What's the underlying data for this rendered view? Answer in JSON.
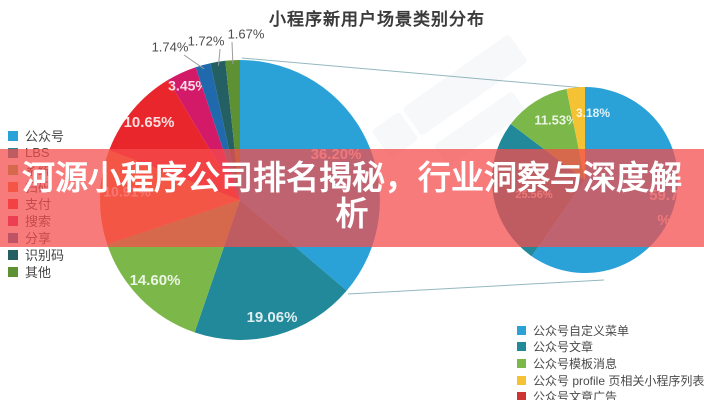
{
  "title": {
    "text": "小程序新用户场景类别分布"
  },
  "overlay_banner": {
    "text": "河源小程序公司排名揭秘，行业洞察与深度解析",
    "background": "#f54d4d",
    "text_color": "#ffffff"
  },
  "chart_data": [
    {
      "type": "pie",
      "name": "scene-distribution",
      "title": "小程序新用户场景类别分布",
      "legend_position": "left",
      "slices": [
        {
          "label": "公众号",
          "value": 36.2,
          "display": "36.20%",
          "color": "#2aa2d8"
        },
        {
          "label": "LBS",
          "value": 19.06,
          "display": "19.06%",
          "color": "#21899a"
        },
        {
          "label": "系统",
          "value": 14.6,
          "display": "14.60%",
          "color": "#7cb849"
        },
        {
          "label": "扫码",
          "value": 10.91,
          "display": "10.91%",
          "color": "#f0722f"
        },
        {
          "label": "支付",
          "value": 10.65,
          "display": "10.65%",
          "color": "#e8262b"
        },
        {
          "label": "搜索",
          "value": 3.45,
          "display": "3.45%",
          "color": "#d31a68"
        },
        {
          "label": "分享",
          "value": 1.74,
          "display": "1.74%",
          "color": "#2069ac",
          "label_outside": true
        },
        {
          "label": "识别码",
          "value": 1.72,
          "display": "1.72%",
          "color": "#235f63",
          "label_outside": true
        },
        {
          "label": "其他",
          "value": 1.67,
          "display": "1.67%",
          "color": "#5d9134",
          "label_outside": true
        }
      ]
    },
    {
      "type": "pie",
      "name": "official-account-breakout",
      "linked_to_slice": "公众号",
      "legend_position": "bottom-right",
      "slices": [
        {
          "label": "公众号自定义菜单",
          "value": 59.73,
          "display": "59.73%",
          "color": "#2aa2d8",
          "wrap": true
        },
        {
          "label": "公众号文章",
          "value": 25.56,
          "display": "25.56%",
          "color": "#21899a"
        },
        {
          "label": "公众号模板消息",
          "value": 11.53,
          "display": "11.53%",
          "color": "#7cb849"
        },
        {
          "label": "公众号 profile 页相关小程序列表",
          "value": 3.18,
          "display": "3.18%",
          "color": "#f5c233"
        },
        {
          "label": "公众号文章广告",
          "value": 0,
          "display": "",
          "color": "#cf3434"
        }
      ]
    }
  ]
}
